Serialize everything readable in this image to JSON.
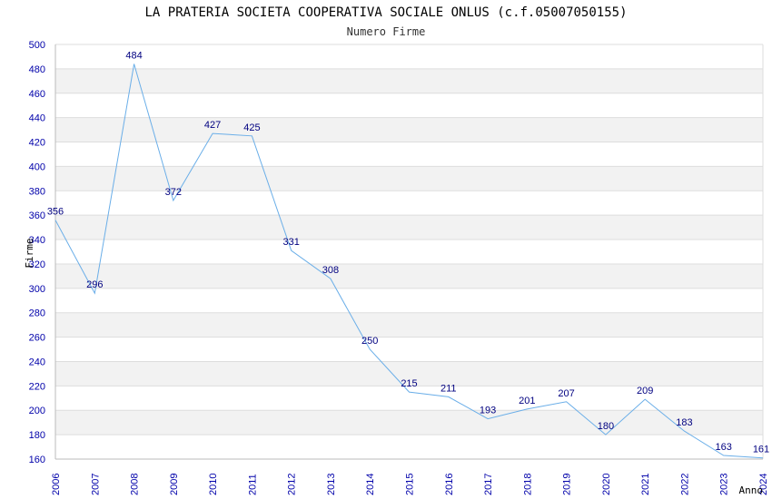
{
  "chart_data": {
    "type": "line",
    "title": "LA PRATERIA SOCIETA COOPERATIVA SOCIALE ONLUS (c.f.05007050155)",
    "subtitle": "Numero Firme",
    "xlabel": "Anno",
    "ylabel": "Firme",
    "ylim": [
      160,
      500
    ],
    "ytick_step": 20,
    "grid": true,
    "categories": [
      "2006",
      "2007",
      "2008",
      "2009",
      "2010",
      "2011",
      "2012",
      "2013",
      "2014",
      "2015",
      "2016",
      "2017",
      "2018",
      "2019",
      "2020",
      "2021",
      "2022",
      "2023",
      "2024"
    ],
    "series": [
      {
        "name": "Numero Firme",
        "color": "#6aaee8",
        "values": [
          356,
          296,
          484,
          372,
          427,
          425,
          331,
          308,
          250,
          215,
          211,
          193,
          201,
          207,
          180,
          209,
          183,
          163,
          161
        ]
      }
    ],
    "colors": {
      "band": "#f2f2f2",
      "gridline": "#dddddd",
      "tick_text": "#0000aa",
      "data_label": "#000080"
    }
  }
}
